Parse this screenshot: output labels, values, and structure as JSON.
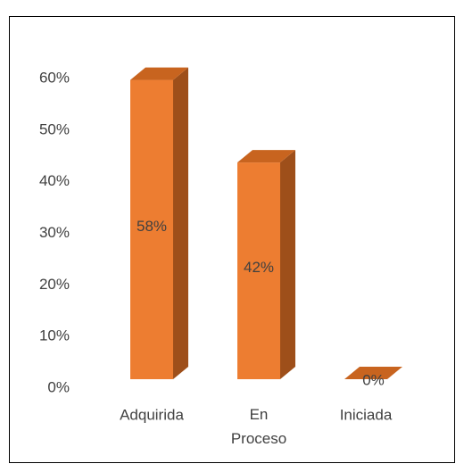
{
  "chart_data": {
    "type": "bar3d",
    "categories": [
      "Adquirida",
      "En Proceso",
      "Iniciada"
    ],
    "values": [
      58,
      42,
      0
    ],
    "value_labels": [
      "58%",
      "42%",
      "0%"
    ],
    "color": "#ed7d31",
    "ylim": [
      0,
      60
    ],
    "yticks": [
      {
        "value": 0,
        "label": "0%"
      },
      {
        "value": 10,
        "label": "10%"
      },
      {
        "value": 20,
        "label": "20%"
      },
      {
        "value": 30,
        "label": "30%"
      },
      {
        "value": 40,
        "label": "40%"
      },
      {
        "value": 50,
        "label": "50%"
      },
      {
        "value": 60,
        "label": "60%"
      }
    ],
    "grid": false
  }
}
